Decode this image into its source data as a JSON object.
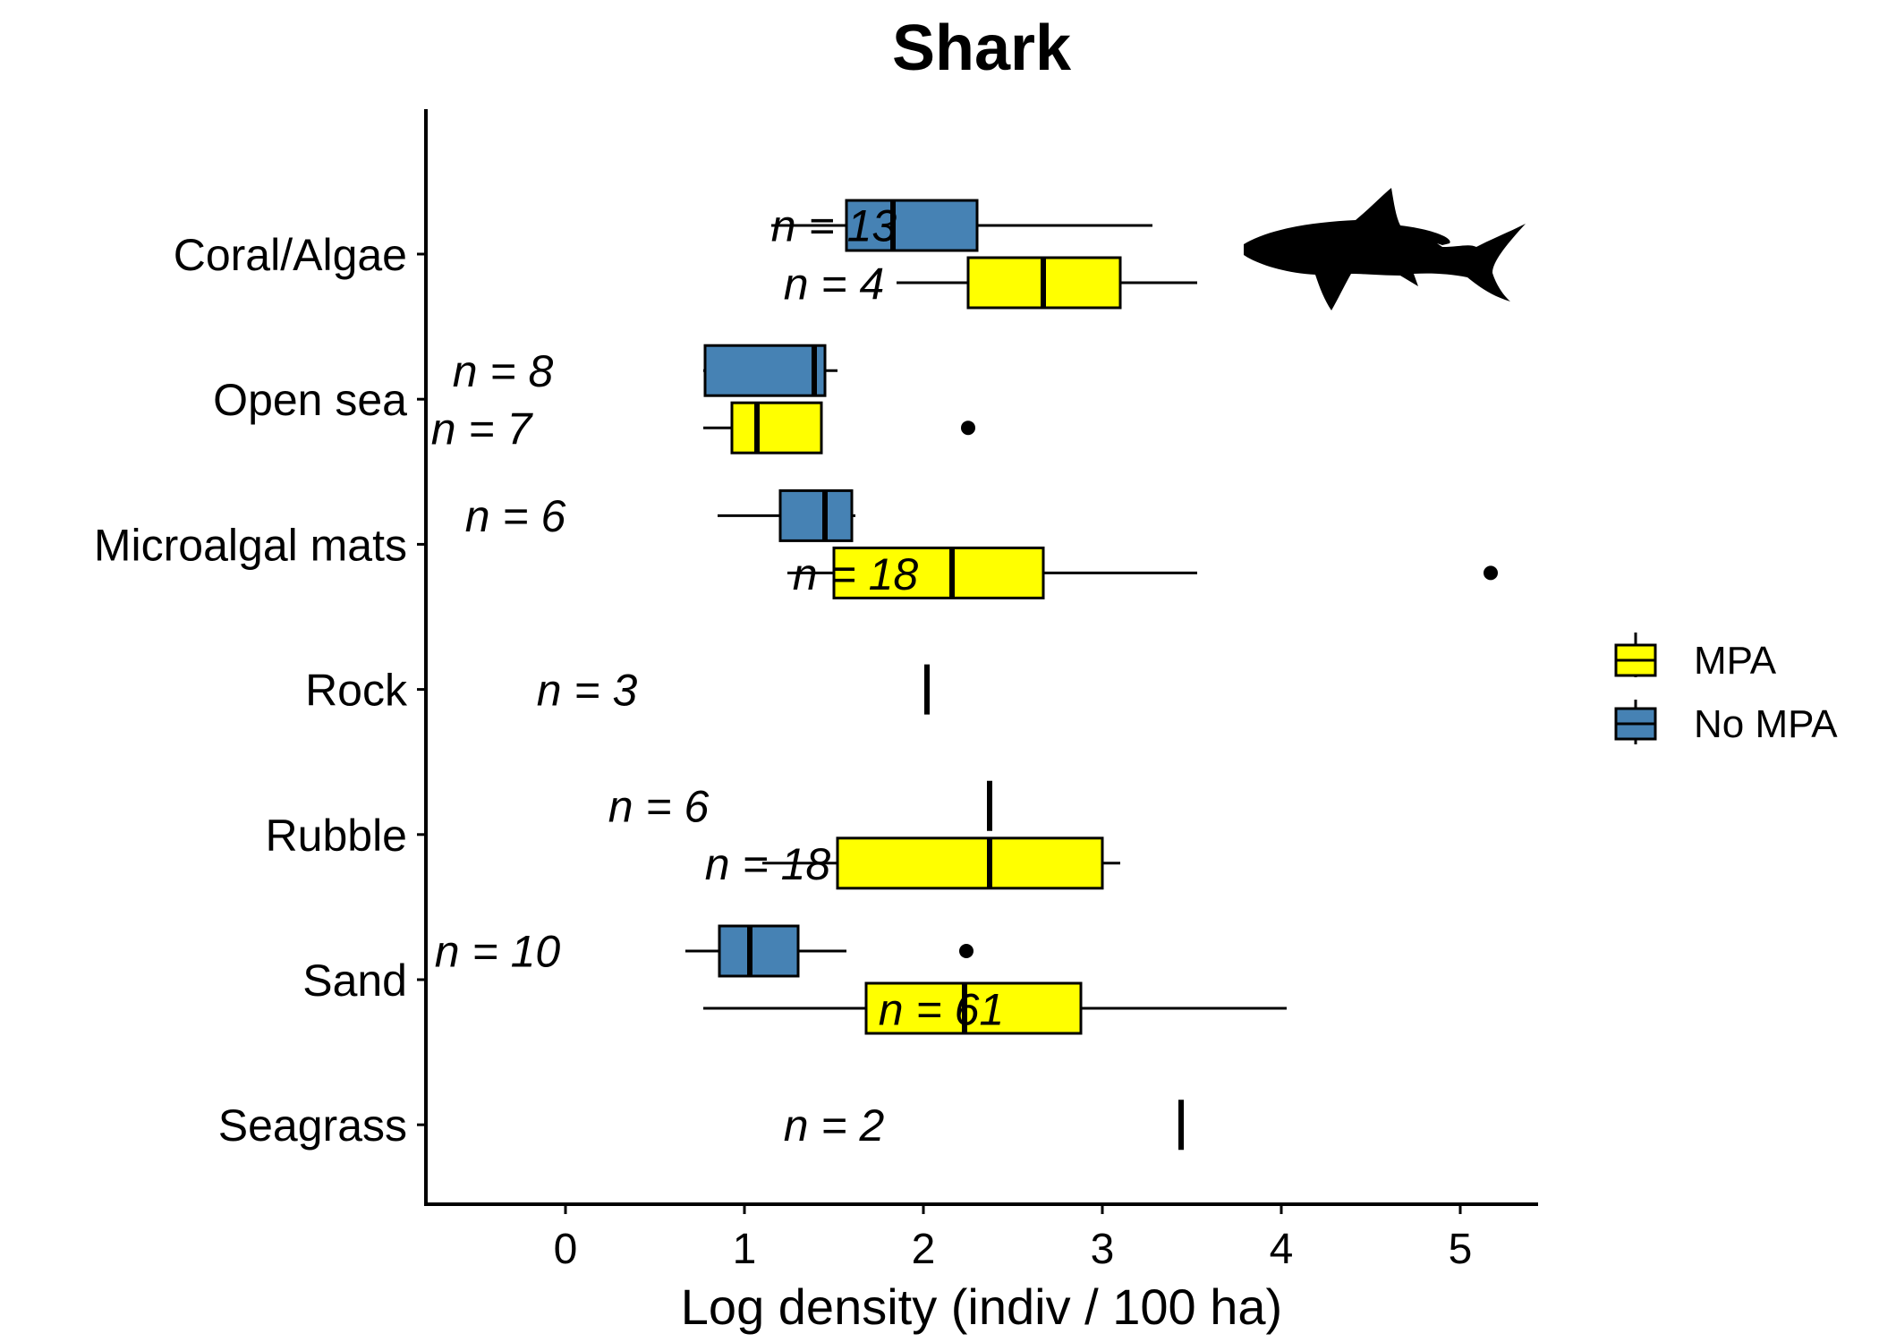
{
  "chart_data": {
    "type": "boxplot",
    "title": "Shark",
    "xlabel": "Log density (indiv / 100 ha)",
    "ylabel": "",
    "xlim": [
      -0.8,
      5.45
    ],
    "xticks": [
      0,
      1,
      2,
      3,
      4,
      5
    ],
    "xtick_labels": [
      "0",
      "1",
      "2",
      "3",
      "4",
      "5"
    ],
    "categories": [
      "Coral/Algae",
      "Open sea",
      "Microalgal mats",
      "Rock",
      "Rubble",
      "Sand",
      "Seagrass"
    ],
    "series": [
      {
        "name": "No MPA",
        "color": "#4682B4"
      },
      {
        "name": "MPA",
        "color": "#FFFF00"
      }
    ],
    "legend": {
      "position": "right",
      "entries": [
        "MPA",
        "No MPA"
      ]
    },
    "grid": false,
    "boxes": [
      {
        "category": "Coral/Algae",
        "group": "No MPA",
        "whisker_low": 1.15,
        "q1": 1.57,
        "median": 1.83,
        "q3": 2.3,
        "whisker_high": 3.28,
        "outliers": []
      },
      {
        "category": "Coral/Algae",
        "group": "MPA",
        "whisker_low": 1.85,
        "q1": 2.25,
        "median": 2.67,
        "q3": 3.1,
        "whisker_high": 3.53,
        "outliers": []
      },
      {
        "category": "Open sea",
        "group": "No MPA",
        "whisker_low": 0.77,
        "q1": 0.78,
        "median": 1.39,
        "q3": 1.45,
        "whisker_high": 1.52,
        "outliers": []
      },
      {
        "category": "Open sea",
        "group": "MPA",
        "whisker_low": 0.77,
        "q1": 0.93,
        "median": 1.07,
        "q3": 1.43,
        "whisker_high": 1.43,
        "outliers": [
          2.25
        ]
      },
      {
        "category": "Microalgal mats",
        "group": "No MPA",
        "whisker_low": 0.85,
        "q1": 1.2,
        "median": 1.45,
        "q3": 1.6,
        "whisker_high": 1.62,
        "outliers": []
      },
      {
        "category": "Microalgal mats",
        "group": "MPA",
        "whisker_low": 1.24,
        "q1": 1.5,
        "median": 2.16,
        "q3": 2.67,
        "whisker_high": 3.53,
        "outliers": [
          5.17
        ]
      },
      {
        "category": "Rock",
        "group": "No MPA",
        "whisker_low": 2.02,
        "q1": 2.02,
        "median": 2.02,
        "q3": 2.02,
        "whisker_high": 2.02,
        "outliers": []
      },
      {
        "category": "Rubble",
        "group": "No MPA",
        "whisker_low": 2.37,
        "q1": 2.37,
        "median": 2.37,
        "q3": 2.37,
        "whisker_high": 2.37,
        "outliers": []
      },
      {
        "category": "Rubble",
        "group": "MPA",
        "whisker_low": 1.1,
        "q1": 1.52,
        "median": 2.37,
        "q3": 3.0,
        "whisker_high": 3.1,
        "outliers": []
      },
      {
        "category": "Sand",
        "group": "No MPA",
        "whisker_low": 0.67,
        "q1": 0.86,
        "median": 1.03,
        "q3": 1.3,
        "whisker_high": 1.57,
        "outliers": [
          2.24
        ]
      },
      {
        "category": "Sand",
        "group": "MPA",
        "whisker_low": 0.77,
        "q1": 1.68,
        "median": 2.23,
        "q3": 2.88,
        "whisker_high": 4.03,
        "outliers": []
      },
      {
        "category": "Seagrass",
        "group": "MPA",
        "whisker_low": 3.44,
        "q1": 3.44,
        "median": 3.44,
        "q3": 3.44,
        "whisker_high": 3.44,
        "outliers": []
      }
    ],
    "annotations": [
      {
        "text": "n = 13",
        "x": 1.5,
        "category": "Coral/Algae",
        "offset": -0.2
      },
      {
        "text": "n = 4",
        "x": 1.5,
        "category": "Coral/Algae",
        "offset": 0.2
      },
      {
        "text": "n = 8",
        "x": -0.35,
        "category": "Open sea",
        "offset": -0.2
      },
      {
        "text": "n = 7",
        "x": -0.47,
        "category": "Open sea",
        "offset": 0.2
      },
      {
        "text": "n = 6",
        "x": -0.28,
        "category": "Microalgal mats",
        "offset": -0.2
      },
      {
        "text": "n = 18",
        "x": 1.62,
        "category": "Microalgal mats",
        "offset": 0.2
      },
      {
        "text": "n = 3",
        "x": 0.12,
        "category": "Rock",
        "offset": 0
      },
      {
        "text": "n = 6",
        "x": 0.52,
        "category": "Rubble",
        "offset": -0.2
      },
      {
        "text": "n = 18",
        "x": 1.13,
        "category": "Rubble",
        "offset": 0.2
      },
      {
        "text": "n = 10",
        "x": -0.38,
        "category": "Sand",
        "offset": -0.2
      },
      {
        "text": "n = 61",
        "x": 2.1,
        "category": "Sand",
        "offset": 0.2
      },
      {
        "text": "n = 2",
        "x": 1.5,
        "category": "Seagrass",
        "offset": 0
      }
    ]
  },
  "icons": {
    "silhouette": "shark-icon"
  }
}
